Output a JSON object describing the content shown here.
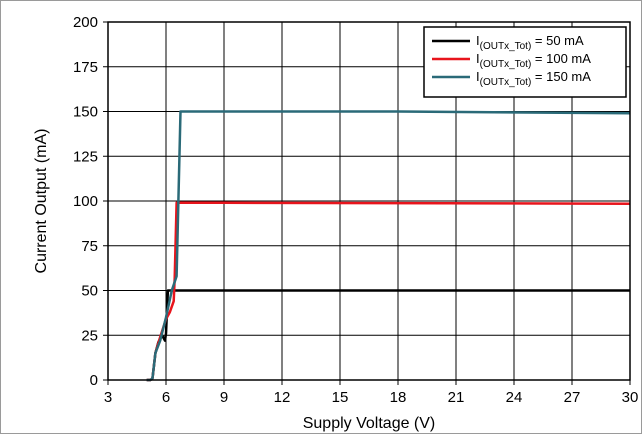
{
  "chart_data": {
    "type": "line",
    "title": "",
    "xlabel": "Supply Voltage (V)",
    "ylabel": "Current Output (mA)",
    "xlim": [
      3,
      30
    ],
    "ylim": [
      0,
      200
    ],
    "xticks": [
      3,
      6,
      9,
      12,
      15,
      18,
      21,
      24,
      27,
      30
    ],
    "yticks": [
      0,
      25,
      50,
      75,
      100,
      125,
      150,
      175,
      200
    ],
    "grid": true,
    "legend_position": "top-right",
    "series": [
      {
        "name_main": "I",
        "name_sub": "(OUTx_Tot)",
        "name_rest": " = 50 mA",
        "color": "#000000",
        "points": [
          [
            5.0,
            0
          ],
          [
            5.2,
            0
          ],
          [
            5.3,
            1
          ],
          [
            5.45,
            15
          ],
          [
            5.6,
            21
          ],
          [
            5.8,
            25
          ],
          [
            5.95,
            22
          ],
          [
            6.0,
            26
          ],
          [
            6.1,
            50
          ],
          [
            30,
            50
          ]
        ]
      },
      {
        "name_main": "I",
        "name_sub": "(OUTx_Tot)",
        "name_rest": " = 100 mA",
        "color": "#e8141c",
        "points": [
          [
            5.0,
            0
          ],
          [
            5.2,
            0
          ],
          [
            5.3,
            1
          ],
          [
            5.45,
            15
          ],
          [
            5.7,
            24
          ],
          [
            6.0,
            34
          ],
          [
            6.2,
            38
          ],
          [
            6.4,
            44
          ],
          [
            6.45,
            57
          ],
          [
            6.55,
            99
          ],
          [
            9,
            99
          ],
          [
            30,
            98.5
          ]
        ]
      },
      {
        "name_main": "I",
        "name_sub": "(OUTx_Tot)",
        "name_rest": " = 150 mA",
        "color": "#2a6a78",
        "points": [
          [
            5.0,
            0
          ],
          [
            5.2,
            0
          ],
          [
            5.3,
            1
          ],
          [
            5.45,
            15
          ],
          [
            5.7,
            22
          ],
          [
            6.0,
            35
          ],
          [
            6.3,
            50
          ],
          [
            6.55,
            58
          ],
          [
            6.75,
            150
          ],
          [
            18,
            150
          ],
          [
            30,
            149
          ]
        ]
      }
    ]
  }
}
